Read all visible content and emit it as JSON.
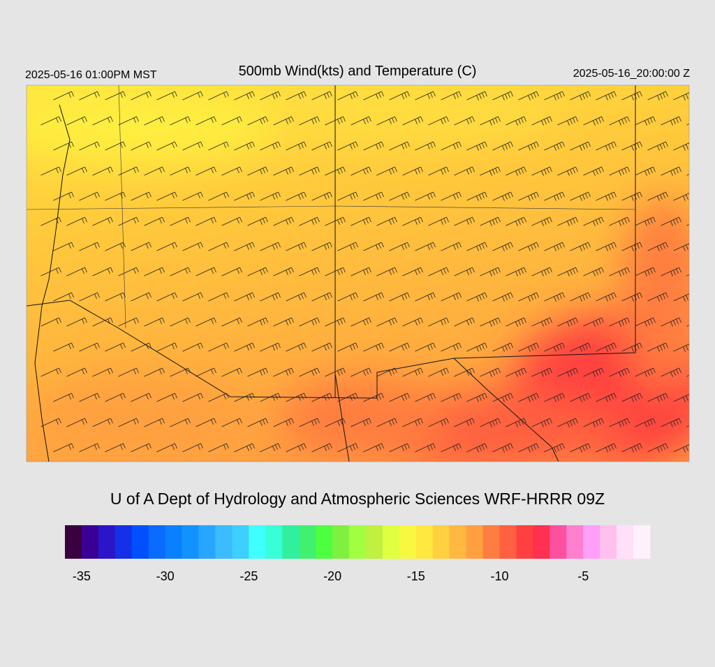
{
  "header": {
    "left": "2025-05-16 01:00PM MST",
    "title": "500mb Wind(kts) and Temperature (C)",
    "right": "2025-05-16_20:00:00 Z"
  },
  "footer": "U of A Dept of Hydrology and Atmospheric Sciences WRF-HRRR 09Z",
  "colorbar": {
    "lim": [
      -36,
      -1
    ],
    "colors": [
      "#3a0040",
      "#3a0096",
      "#2c15c8",
      "#1530e6",
      "#0050ff",
      "#0a6cff",
      "#0a80ff",
      "#1292ff",
      "#28a6ff",
      "#3cbcff",
      "#3ccfff",
      "#40ffff",
      "#38ffd8",
      "#30f0a0",
      "#40f070",
      "#4cff40",
      "#80f040",
      "#a0ff40",
      "#c0f040",
      "#e0ff40",
      "#f8f840",
      "#ffe840",
      "#ffd040",
      "#ffb840",
      "#ffa040",
      "#ff7d40",
      "#ff6040",
      "#ff4040",
      "#ff3050",
      "#ff50a0",
      "#ff80d0",
      "#ffa0f8",
      "#ffc0f0",
      "#ffe0f8",
      "#fff0fc"
    ],
    "ticks": [
      -35,
      -30,
      -25,
      -20,
      -15,
      -10,
      -5
    ]
  }
}
